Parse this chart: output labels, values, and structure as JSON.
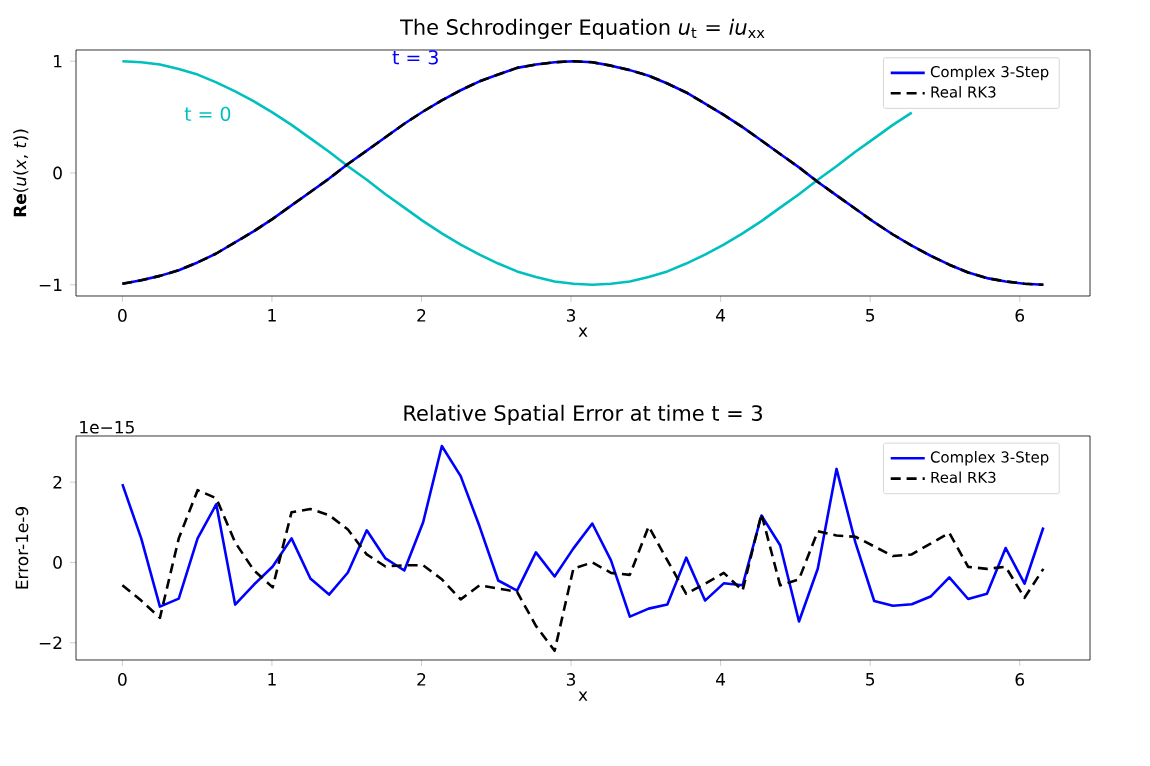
{
  "chart_data": [
    {
      "type": "line",
      "title": "The Schrodinger Equation  *u*$_{t}$ = *iu*$_{xx}$",
      "xlabel": "x",
      "ylabel": "**Re**(*u*(*x*, *t*))",
      "x": [
        0.0,
        0.126,
        0.251,
        0.377,
        0.503,
        0.628,
        0.754,
        0.88,
        1.005,
        1.131,
        1.257,
        1.382,
        1.508,
        1.634,
        1.759,
        1.885,
        2.011,
        2.136,
        2.262,
        2.388,
        2.513,
        2.639,
        2.765,
        2.89,
        3.016,
        3.142,
        3.267,
        3.393,
        3.519,
        3.644,
        3.77,
        3.896,
        4.021,
        4.147,
        4.273,
        4.398,
        4.524,
        4.65,
        4.775,
        4.901,
        5.027,
        5.152,
        5.278,
        5.404,
        5.529,
        5.655,
        5.781,
        5.906,
        6.032,
        6.158
      ],
      "series": [
        {
          "color": "#00bfbf",
          "values": [
            1.0,
            0.99,
            0.97,
            0.93,
            0.88,
            0.81,
            0.73,
            0.64,
            0.54,
            0.43,
            0.31,
            0.19,
            0.06,
            -0.06,
            -0.19,
            -0.31,
            -0.43,
            -0.54,
            -0.64,
            -0.73,
            -0.81,
            -0.88,
            -0.93,
            -0.97,
            -0.99,
            -1.0,
            -0.99,
            -0.97,
            -0.93,
            -0.88,
            -0.81,
            -0.73,
            -0.64,
            -0.54,
            -0.43,
            -0.31,
            -0.19,
            -0.06,
            0.06,
            0.19,
            0.31,
            0.43,
            0.54,
            null,
            null,
            null,
            null,
            null,
            null,
            null
          ]
        },
        {
          "name": "Complex 3-Step",
          "color": "#0000ff",
          "line_style": "solid",
          "values": [
            -0.99,
            -0.96,
            -0.92,
            -0.87,
            -0.8,
            -0.72,
            -0.62,
            -0.52,
            -0.41,
            -0.29,
            -0.17,
            -0.05,
            0.08,
            0.2,
            0.32,
            0.44,
            0.55,
            0.65,
            0.74,
            0.82,
            0.88,
            0.94,
            0.97,
            0.99,
            1.0,
            0.99,
            0.96,
            0.92,
            0.87,
            0.8,
            0.72,
            0.62,
            0.52,
            0.41,
            0.29,
            0.17,
            0.05,
            -0.08,
            -0.2,
            -0.32,
            -0.44,
            -0.55,
            -0.65,
            -0.74,
            -0.82,
            -0.89,
            -0.94,
            -0.97,
            -0.99,
            -1.0
          ]
        },
        {
          "name": "Real RK3",
          "color": "#000000",
          "line_style": "dashed",
          "values": [
            -0.99,
            -0.96,
            -0.92,
            -0.87,
            -0.8,
            -0.72,
            -0.62,
            -0.52,
            -0.41,
            -0.29,
            -0.17,
            -0.05,
            0.08,
            0.2,
            0.32,
            0.44,
            0.55,
            0.65,
            0.74,
            0.82,
            0.88,
            0.94,
            0.97,
            0.99,
            1.0,
            0.99,
            0.96,
            0.92,
            0.87,
            0.8,
            0.72,
            0.62,
            0.52,
            0.41,
            0.29,
            0.17,
            0.05,
            -0.08,
            -0.2,
            -0.32,
            -0.44,
            -0.55,
            -0.65,
            -0.74,
            -0.82,
            -0.89,
            -0.94,
            -0.97,
            -0.99,
            -1.0
          ]
        }
      ],
      "annotations": [
        "t = 0",
        "t = 3"
      ],
      "xlim": [
        -0.31,
        6.47
      ],
      "ylim": [
        -1.1,
        1.1
      ],
      "xticks": [
        0,
        1,
        2,
        3,
        4,
        5,
        6
      ],
      "yticks": [
        {
          "value": -1,
          "label": "−1"
        },
        0,
        1
      ],
      "legend": "top right",
      "grid": false,
      "marker": "none"
    },
    {
      "type": "line",
      "title": "Relative Spatial Error at time t = 3",
      "xlabel": "x",
      "ylabel": "Error-1e-9",
      "x": [
        0.0,
        0.126,
        0.251,
        0.377,
        0.503,
        0.628,
        0.754,
        0.88,
        1.005,
        1.131,
        1.257,
        1.382,
        1.508,
        1.634,
        1.759,
        1.885,
        2.011,
        2.136,
        2.262,
        2.388,
        2.513,
        2.639,
        2.765,
        2.89,
        3.016,
        3.142,
        3.267,
        3.393,
        3.519,
        3.644,
        3.77,
        3.896,
        4.021,
        4.147,
        4.273,
        4.398,
        4.524,
        4.65,
        4.775,
        4.901,
        5.027,
        5.152,
        5.278,
        5.404,
        5.529,
        5.655,
        5.781,
        5.906,
        6.032,
        6.158
      ],
      "series": [
        {
          "name": "Complex 3-Step",
          "color": "#0000ff",
          "line_style": "solid",
          "values": [
            1.95,
            0.6,
            -1.1,
            -0.9,
            0.6,
            1.45,
            -1.05,
            -0.55,
            -0.1,
            0.6,
            -0.4,
            -0.8,
            -0.25,
            0.8,
            0.1,
            -0.2,
            1.0,
            2.9,
            2.15,
            0.9,
            -0.45,
            -0.7,
            0.25,
            -0.35,
            0.35,
            0.97,
            0.05,
            -1.35,
            -1.15,
            -1.05,
            0.12,
            -0.95,
            -0.52,
            -0.57,
            1.17,
            0.43,
            -1.47,
            -0.15,
            2.33,
            0.5,
            -0.96,
            -1.08,
            -1.04,
            -0.85,
            -0.37,
            -0.91,
            -0.78,
            0.36,
            -0.53,
            0.87
          ]
        },
        {
          "name": "Real RK3",
          "color": "#000000",
          "line_style": "dashed",
          "values": [
            -0.57,
            -0.95,
            -1.38,
            0.6,
            1.8,
            1.6,
            0.5,
            -0.2,
            -0.62,
            1.25,
            1.33,
            1.18,
            0.82,
            0.2,
            -0.1,
            -0.07,
            -0.07,
            -0.42,
            -0.92,
            -0.57,
            -0.65,
            -0.73,
            -1.58,
            -2.2,
            -0.15,
            0.0,
            -0.26,
            -0.31,
            0.9,
            0.05,
            -0.78,
            -0.53,
            -0.26,
            -0.7,
            1.21,
            -0.57,
            -0.42,
            0.78,
            0.67,
            0.64,
            0.4,
            0.16,
            0.2,
            0.47,
            0.74,
            -0.11,
            -0.16,
            -0.11,
            -0.88,
            -0.16
          ]
        }
      ],
      "annotations": [
        "1e−15"
      ],
      "xlim": [
        -0.31,
        6.47
      ],
      "ylim": [
        -2.43,
        3.15
      ],
      "xticks": [
        0,
        1,
        2,
        3,
        4,
        5,
        6
      ],
      "yticks": [
        {
          "value": -2,
          "label": "−2"
        },
        0,
        2
      ],
      "legend": "top right",
      "grid": false,
      "marker": "none"
    }
  ]
}
